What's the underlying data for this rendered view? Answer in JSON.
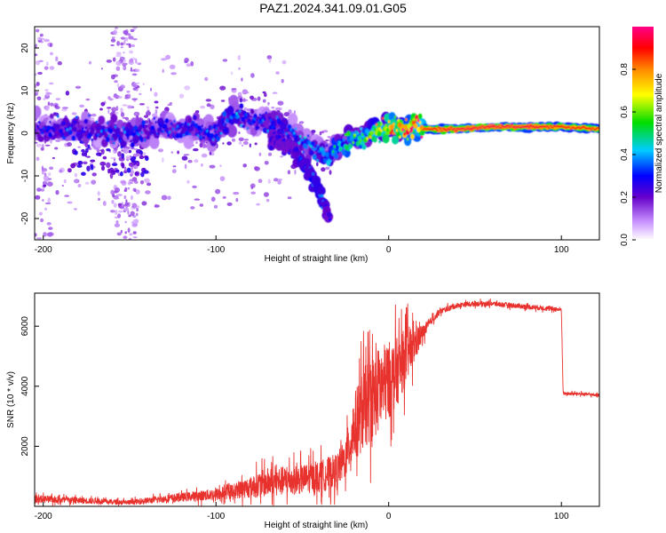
{
  "title": "PAZ1.2024.341.09.01.G05",
  "colors": {
    "snr_line": "#e8322e",
    "frame": "#000000"
  },
  "chart_data": [
    {
      "type": "heatmap",
      "xlabel": "Height of straight line (km)",
      "ylabel": "Frequency (Hz)",
      "xlim": [
        -205,
        122
      ],
      "ylim": [
        -25,
        25
      ],
      "xticks": [
        -200,
        -100,
        0,
        100
      ],
      "yticks": [
        -20,
        -10,
        0,
        10,
        20
      ],
      "colorbar": {
        "label": "Normalized spectral amplitude",
        "range": [
          0,
          1
        ],
        "ticks": [
          0.0,
          0.2,
          0.4,
          0.6,
          0.8
        ],
        "tick_labels": [
          "0.0",
          "0.2",
          "0.4",
          "0.6",
          "0.8"
        ],
        "colormap": "rainbow (white-violet-blue-cyan-green-yellow-orange-red-magenta)"
      },
      "ridge": {
        "x": [
          -205,
          -190,
          -170,
          -150,
          -130,
          -110,
          -100,
          -90,
          -80,
          -70,
          -60,
          -50,
          -40,
          -35,
          -30,
          -20,
          -10,
          0,
          10,
          20,
          40,
          60,
          80,
          100,
          122
        ],
        "freq": [
          1,
          1,
          0.5,
          0,
          1,
          0.5,
          0,
          4,
          3,
          2.5,
          1,
          -2,
          -4.5,
          -5.5,
          -3.5,
          -1.5,
          0,
          1.5,
          1,
          1,
          1,
          1.5,
          1.5,
          1.5,
          1
        ],
        "amplitude": [
          0.25,
          0.3,
          0.3,
          0.3,
          0.3,
          0.3,
          0.3,
          0.35,
          0.3,
          0.3,
          0.3,
          0.35,
          0.35,
          0.4,
          0.45,
          0.5,
          0.6,
          0.7,
          0.85,
          0.9,
          0.95,
          0.95,
          0.95,
          0.9,
          0.9
        ]
      },
      "secondary_branch": {
        "x": [
          -65,
          -55,
          -50,
          -45,
          -40,
          -37,
          -35
        ],
        "freq": [
          -2,
          -4,
          -7,
          -10,
          -14,
          -17,
          -20
        ],
        "amplitude": [
          0.25,
          0.25,
          0.3,
          0.3,
          0.35,
          0.3,
          0.25
        ]
      }
    },
    {
      "type": "line",
      "xlabel": "Height of straight line (km)",
      "ylabel": "SNR (10 * v/v)",
      "xlim": [
        -205,
        122
      ],
      "ylim": [
        0,
        7100
      ],
      "xticks": [
        -200,
        -100,
        0,
        100
      ],
      "yticks": [
        2000,
        4000,
        6000
      ],
      "envelope": {
        "x": [
          -205,
          -180,
          -160,
          -150,
          -130,
          -110,
          -100,
          -90,
          -80,
          -70,
          -60,
          -50,
          -40,
          -30,
          -25,
          -20,
          -15,
          -10,
          -5,
          0,
          5,
          10,
          15,
          20,
          25,
          30,
          40,
          50,
          60,
          70,
          80,
          90,
          100,
          101,
          102,
          110,
          122
        ],
        "mean": [
          250,
          200,
          150,
          130,
          250,
          350,
          400,
          500,
          650,
          800,
          850,
          900,
          1000,
          1200,
          1600,
          2600,
          3200,
          3600,
          3900,
          4200,
          4500,
          5000,
          5400,
          5800,
          6200,
          6500,
          6700,
          6750,
          6750,
          6700,
          6650,
          6600,
          6550,
          3800,
          3750,
          3750,
          3700
        ],
        "noise": [
          150,
          130,
          100,
          100,
          150,
          200,
          250,
          300,
          450,
          600,
          600,
          600,
          650,
          700,
          800,
          1400,
          1700,
          1800,
          1800,
          1600,
          1400,
          1200,
          800,
          300,
          150,
          120,
          100,
          100,
          100,
          100,
          100,
          100,
          100,
          60,
          60,
          60,
          60
        ]
      }
    }
  ]
}
